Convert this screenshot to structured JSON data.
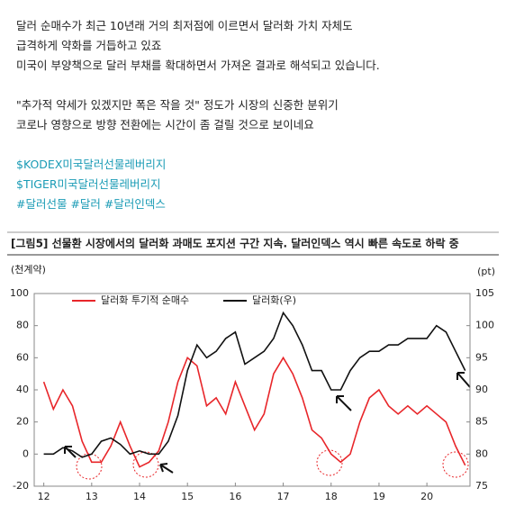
{
  "post": {
    "paragraphs": [
      [
        "달러 순매수가 최근 10년래 거의 최저점에 이르면서 달러화 가치 자체도",
        "급격하게 약화를 거듭하고 있죠",
        "미국이 부양책으로 달러 부채를 확대하면서 가져온 결과로 해석되고 있습니다."
      ],
      [
        "\"추가적 약세가 있겠지만 폭은 작을 것\" 정도가 시장의 신중한 분위기",
        "코로나 영향으로 방향 전환에는 시간이 좀 걸릴 것으로 보이네요"
      ]
    ],
    "hashtags": [
      "$KODEX미국달러선물레버리지",
      "$TIGER미국달러선물레버리지",
      "#달러선물 #달러 #달러인덱스"
    ]
  },
  "chart_data": {
    "type": "line",
    "title": "[그림5] 선물환 시장에서의 달러화 과매도 포지션 구간 지속. 달러인덱스 역시 빠른 속도로 하락 중",
    "y_label": "(천계약)",
    "y2_label": "(pt)",
    "x": [
      12.0,
      12.2,
      12.4,
      12.6,
      12.8,
      13.0,
      13.2,
      13.4,
      13.6,
      13.8,
      14.0,
      14.2,
      14.4,
      14.6,
      14.8,
      15.0,
      15.2,
      15.4,
      15.6,
      15.8,
      16.0,
      16.2,
      16.4,
      16.6,
      16.8,
      17.0,
      17.2,
      17.4,
      17.6,
      17.8,
      18.0,
      18.2,
      18.4,
      18.6,
      18.8,
      19.0,
      19.2,
      19.4,
      19.6,
      19.8,
      20.0,
      20.2,
      20.4,
      20.6,
      20.8
    ],
    "xlim": [
      11.8,
      20.9
    ],
    "xticks": [
      12,
      13,
      14,
      15,
      16,
      17,
      18,
      19,
      20
    ],
    "ylim": [
      -20,
      100
    ],
    "yticks": [
      -20,
      0,
      20,
      40,
      60,
      80,
      100
    ],
    "y2lim": [
      75,
      105
    ],
    "y2ticks": [
      75,
      80,
      85,
      90,
      95,
      100,
      105
    ],
    "series": [
      {
        "name": "달러화 투기적 순매수",
        "color": "#e8262a",
        "values": [
          45,
          28,
          40,
          30,
          8,
          -5,
          -5,
          5,
          20,
          5,
          -8,
          -5,
          2,
          20,
          45,
          60,
          55,
          30,
          35,
          25,
          45,
          30,
          15,
          25,
          50,
          60,
          50,
          35,
          15,
          10,
          0,
          -5,
          0,
          20,
          35,
          40,
          30,
          25,
          30,
          25,
          30,
          25,
          20,
          5,
          -7
        ]
      },
      {
        "name": "달러화(우)",
        "color": "#111111",
        "axis": "y2",
        "values": [
          80,
          80,
          81,
          80.5,
          79.5,
          80,
          82,
          82.5,
          81.5,
          80,
          80.5,
          80,
          80,
          82,
          86,
          93,
          97,
          95,
          96,
          98,
          99,
          94,
          95,
          96,
          98,
          102,
          100,
          97,
          93,
          93,
          90,
          90,
          93,
          95,
          96,
          96,
          97,
          97,
          98,
          98,
          98,
          100,
          99,
          96,
          93
        ]
      }
    ]
  }
}
